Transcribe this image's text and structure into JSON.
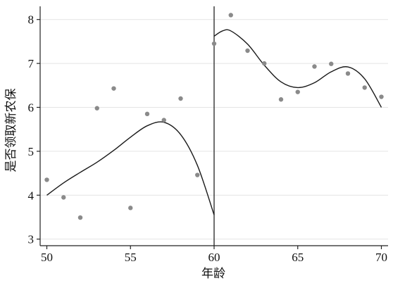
{
  "chart_data": {
    "type": "scatter",
    "title": "",
    "xlabel": "年龄",
    "ylabel": "是否领取新农保",
    "xlim": [
      49.6,
      70.4
    ],
    "ylim": [
      2.85,
      8.3
    ],
    "x_ticks": [
      50,
      55,
      60,
      65,
      70
    ],
    "y_ticks": [
      3,
      4,
      5,
      6,
      7,
      8
    ],
    "grid": "horizontal",
    "cutoff_x": 60,
    "points": [
      {
        "x": 50,
        "y": 4.35
      },
      {
        "x": 51,
        "y": 3.95
      },
      {
        "x": 52,
        "y": 3.49
      },
      {
        "x": 53,
        "y": 5.98
      },
      {
        "x": 54,
        "y": 6.43
      },
      {
        "x": 55,
        "y": 3.71
      },
      {
        "x": 56,
        "y": 5.85
      },
      {
        "x": 57,
        "y": 5.71
      },
      {
        "x": 58,
        "y": 6.2
      },
      {
        "x": 59,
        "y": 4.46
      },
      {
        "x": 60,
        "y": 7.45
      },
      {
        "x": 61,
        "y": 8.1
      },
      {
        "x": 62,
        "y": 7.29
      },
      {
        "x": 63,
        "y": 7.0
      },
      {
        "x": 64,
        "y": 6.18
      },
      {
        "x": 65,
        "y": 6.35
      },
      {
        "x": 66,
        "y": 6.93
      },
      {
        "x": 67,
        "y": 6.99
      },
      {
        "x": 68,
        "y": 6.77
      },
      {
        "x": 69,
        "y": 6.45
      },
      {
        "x": 70,
        "y": 6.24
      }
    ],
    "fit_left": [
      {
        "x": 50,
        "y": 4.0
      },
      {
        "x": 51,
        "y": 4.28
      },
      {
        "x": 52,
        "y": 4.52
      },
      {
        "x": 53,
        "y": 4.75
      },
      {
        "x": 54,
        "y": 5.02
      },
      {
        "x": 55,
        "y": 5.32
      },
      {
        "x": 56,
        "y": 5.58
      },
      {
        "x": 57,
        "y": 5.66
      },
      {
        "x": 58,
        "y": 5.38
      },
      {
        "x": 59,
        "y": 4.68
      },
      {
        "x": 60,
        "y": 3.55
      }
    ],
    "fit_right": [
      {
        "x": 60,
        "y": 7.62
      },
      {
        "x": 60.5,
        "y": 7.74
      },
      {
        "x": 61,
        "y": 7.74
      },
      {
        "x": 62,
        "y": 7.44
      },
      {
        "x": 63,
        "y": 6.96
      },
      {
        "x": 64,
        "y": 6.58
      },
      {
        "x": 65,
        "y": 6.45
      },
      {
        "x": 66,
        "y": 6.56
      },
      {
        "x": 67,
        "y": 6.81
      },
      {
        "x": 68,
        "y": 6.92
      },
      {
        "x": 69,
        "y": 6.65
      },
      {
        "x": 70,
        "y": 6.0
      }
    ]
  }
}
